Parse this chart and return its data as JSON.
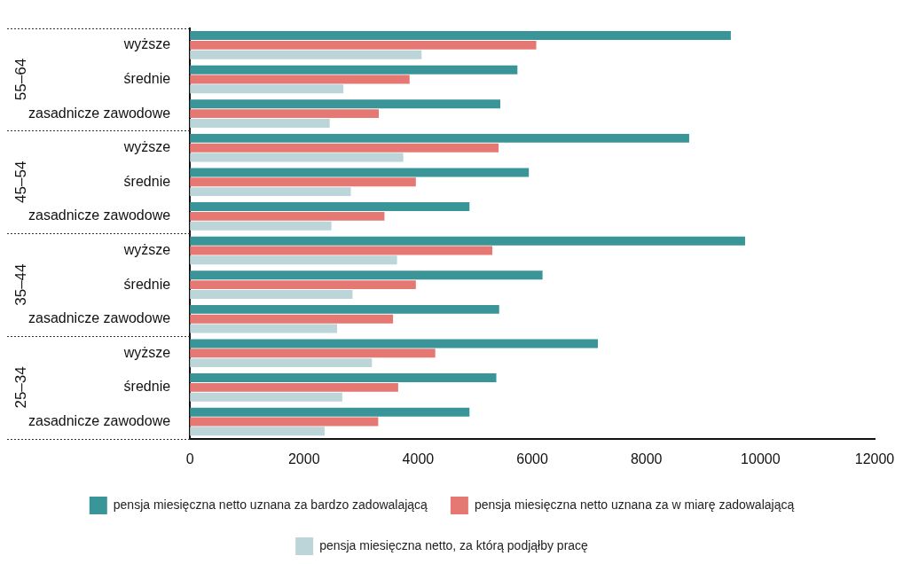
{
  "chart_data": {
    "type": "bar",
    "orientation": "horizontal",
    "categories": [
      "wyższe",
      "średnie",
      "zasadnicze zawodowe",
      "wyższe",
      "średnie",
      "zasadnicze zawodowe",
      "wyższe",
      "średnie",
      "zasadnicze zawodowe",
      "wyższe",
      "średnie",
      "zasadnicze zawodowe"
    ],
    "annotations": [
      "55–64",
      "45–54",
      "35–44",
      "25–34"
    ],
    "series": [
      {
        "name": "pensja miesięczna netto uznana za bardzo zadowalającą",
        "color": "#3a9599",
        "values": [
          9480,
          5740,
          5440,
          8750,
          5940,
          4900,
          9730,
          6180,
          5420,
          7150,
          5370,
          4900
        ]
      },
      {
        "name": "pensja miesięczna netto uznana za w miarę zadowalającą",
        "color": "#e57873",
        "values": [
          6070,
          3850,
          3310,
          5410,
          3960,
          3410,
          5300,
          3960,
          3560,
          4300,
          3650,
          3300
        ]
      },
      {
        "name": "pensja miesięczna netto, za którą podjąłby pracę",
        "color": "#bcd5d8",
        "values": [
          4060,
          2690,
          2450,
          3740,
          2820,
          2480,
          3630,
          2850,
          2580,
          3190,
          2670,
          2360
        ]
      }
    ],
    "xlim": [
      0,
      12000
    ],
    "xticks": [
      0,
      2000,
      4000,
      6000,
      8000,
      10000,
      12000
    ],
    "grid": false,
    "legend": "bottom"
  }
}
